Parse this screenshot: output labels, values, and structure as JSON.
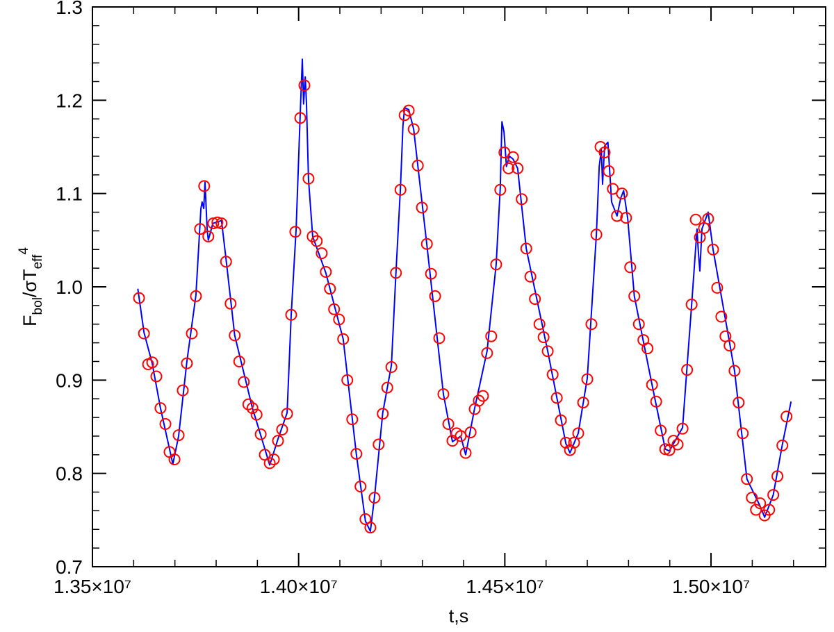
{
  "chart_data": {
    "type": "scatter",
    "xlabel": "t,s",
    "ylabel_parts": [
      "F",
      "bol",
      "/σT",
      "eff",
      "4"
    ],
    "xlim": [
      13500000,
      15278000
    ],
    "ylim": [
      0.7,
      1.3
    ],
    "xticks": [
      {
        "value": 13500000,
        "label": "1.35×10⁷"
      },
      {
        "value": 14000000,
        "label": "1.40×10⁷"
      },
      {
        "value": 14500000,
        "label": "1.45×10⁷"
      },
      {
        "value": 15000000,
        "label": "1.50×10⁷"
      }
    ],
    "yticks": [
      0.7,
      0.8,
      0.9,
      {
        "value": 1,
        "label": "1.0"
      },
      1.1,
      1.2,
      1.3
    ],
    "minor_subdivisions": {
      "x": 5,
      "y": 5
    },
    "line": {
      "color": "#0000ff",
      "x": [
        13610000,
        13625000,
        13645000,
        13665000,
        13695000,
        13709000,
        13729000,
        13751000,
        13763000,
        13766000,
        13770000,
        13773000,
        13778000,
        13781000,
        13792000,
        13813000,
        13824000,
        13845000,
        13888000,
        13908000,
        13930000,
        13950000,
        13972000,
        13982000,
        13994000,
        14004000,
        14009000,
        14012000,
        14016000,
        14019000,
        14024000,
        14034000,
        14066000,
        14108000,
        14140000,
        14162000,
        14174000,
        14184000,
        14204000,
        14225000,
        14236000,
        14247000,
        14253000,
        14257000,
        14267000,
        14279000,
        14311000,
        14351000,
        14373000,
        14393000,
        14405000,
        14427000,
        14457000,
        14479000,
        14489000,
        14493000,
        14498000,
        14504000,
        14511000,
        14520000,
        14531000,
        14552000,
        14604000,
        14648000,
        14658000,
        14678000,
        14700000,
        14722000,
        14729000,
        14734000,
        14737000,
        14742000,
        14750000,
        14759000,
        14772000,
        14781000,
        14788000,
        14798000,
        14814000,
        14857000,
        14889000,
        14899000,
        14931000,
        14953000,
        14966000,
        14969000,
        14973000,
        14978000,
        14993000,
        15005000,
        15057000,
        15087000,
        15119000,
        15130000,
        15151000,
        15173000,
        15194000
      ],
      "values": [
        0.998,
        0.951,
        0.918,
        0.87,
        0.81,
        0.84,
        0.92,
        0.991,
        1.084,
        1.091,
        1.084,
        1.112,
        1.062,
        1.05,
        1.068,
        1.071,
        1.03,
        0.948,
        0.87,
        0.841,
        0.809,
        0.837,
        0.865,
        0.97,
        1.062,
        1.188,
        1.244,
        1.196,
        1.225,
        1.196,
        1.115,
        1.054,
        1.015,
        0.944,
        0.82,
        0.749,
        0.738,
        0.775,
        0.865,
        0.916,
        1.015,
        1.106,
        1.173,
        1.192,
        1.19,
        1.169,
        1.045,
        0.885,
        0.834,
        0.84,
        0.82,
        0.87,
        0.931,
        1.024,
        1.106,
        1.177,
        1.166,
        1.129,
        1.14,
        1.137,
        1.127,
        1.041,
        0.931,
        0.832,
        0.822,
        0.843,
        0.902,
        1.056,
        1.129,
        1.147,
        1.11,
        1.151,
        1.155,
        1.091,
        1.076,
        1.095,
        1.103,
        1.073,
        0.99,
        0.895,
        0.826,
        0.824,
        0.849,
        0.981,
        1.062,
        1.039,
        1.017,
        1.062,
        1.08,
        1.04,
        0.91,
        0.794,
        0.765,
        0.753,
        0.777,
        0.831,
        0.877
      ]
    },
    "points": {
      "color": "#ff0000",
      "x": [
        13613000,
        13625000,
        13635000,
        13645000,
        13655000,
        13665000,
        13677000,
        13687000,
        13699000,
        13709000,
        13719000,
        13729000,
        13741000,
        13751000,
        13761000,
        13771000,
        13781000,
        13793000,
        13803000,
        13813000,
        13824000,
        13835000,
        13845000,
        13856000,
        13867000,
        13878000,
        13888000,
        13898000,
        13908000,
        13918000,
        13930000,
        13940000,
        13950000,
        13960000,
        13972000,
        13982000,
        13992000,
        14004000,
        14014000,
        14024000,
        14034000,
        14044000,
        14056000,
        14066000,
        14076000,
        14086000,
        14098000,
        14108000,
        14118000,
        14130000,
        14140000,
        14150000,
        14162000,
        14174000,
        14184000,
        14194000,
        14204000,
        14215000,
        14225000,
        14236000,
        14247000,
        14257000,
        14267000,
        14279000,
        14289000,
        14299000,
        14311000,
        14321000,
        14331000,
        14341000,
        14351000,
        14363000,
        14373000,
        14383000,
        14393000,
        14405000,
        14417000,
        14427000,
        14437000,
        14447000,
        14457000,
        14467000,
        14479000,
        14489000,
        14499000,
        14509000,
        14520000,
        14531000,
        14541000,
        14552000,
        14562000,
        14573000,
        14584000,
        14594000,
        14604000,
        14616000,
        14626000,
        14636000,
        14648000,
        14658000,
        14668000,
        14678000,
        14690000,
        14700000,
        14710000,
        14722000,
        14732000,
        14742000,
        14752000,
        14762000,
        14772000,
        14784000,
        14794000,
        14804000,
        14814000,
        14825000,
        14836000,
        14846000,
        14857000,
        14867000,
        14878000,
        14889000,
        14899000,
        14909000,
        14919000,
        14931000,
        14942000,
        14953000,
        14963000,
        14973000,
        14983000,
        14993000,
        15005000,
        15015000,
        15025000,
        15035000,
        15045000,
        15057000,
        15067000,
        15077000,
        15087000,
        15099000,
        15109000,
        15119000,
        15130000,
        15141000,
        15151000,
        15161000,
        15173000,
        15183000
      ],
      "values": [
        0.988,
        0.95,
        0.917,
        0.919,
        0.904,
        0.87,
        0.853,
        0.823,
        0.815,
        0.841,
        0.889,
        0.918,
        0.95,
        0.99,
        1.062,
        1.108,
        1.054,
        1.068,
        1.069,
        1.068,
        1.027,
        0.982,
        0.948,
        0.92,
        0.898,
        0.874,
        0.87,
        0.863,
        0.842,
        0.82,
        0.811,
        0.815,
        0.835,
        0.847,
        0.864,
        0.97,
        1.059,
        1.181,
        1.216,
        1.116,
        1.054,
        1.049,
        1.036,
        1.016,
        0.998,
        0.976,
        0.965,
        0.944,
        0.9,
        0.858,
        0.821,
        0.786,
        0.751,
        0.742,
        0.774,
        0.831,
        0.864,
        0.892,
        0.914,
        1.015,
        1.104,
        1.184,
        1.189,
        1.169,
        1.13,
        1.085,
        1.046,
        1.014,
        0.99,
        0.945,
        0.885,
        0.853,
        0.835,
        0.843,
        0.84,
        0.822,
        0.844,
        0.869,
        0.878,
        0.883,
        0.929,
        0.947,
        1.024,
        1.104,
        1.144,
        1.127,
        1.139,
        1.127,
        1.094,
        1.041,
        1.011,
        0.987,
        0.96,
        0.946,
        0.931,
        0.906,
        0.881,
        0.857,
        0.833,
        0.825,
        0.833,
        0.843,
        0.876,
        0.901,
        0.96,
        1.056,
        1.15,
        1.144,
        1.124,
        1.105,
        1.076,
        1.1,
        1.074,
        1.021,
        0.99,
        0.96,
        0.943,
        0.934,
        0.895,
        0.877,
        0.846,
        0.826,
        0.825,
        0.835,
        0.831,
        0.848,
        0.911,
        0.981,
        1.072,
        1.053,
        1.063,
        1.073,
        1.04,
        0.999,
        0.968,
        0.947,
        0.937,
        0.91,
        0.876,
        0.843,
        0.794,
        0.774,
        0.761,
        0.768,
        0.755,
        0.761,
        0.777,
        0.797,
        0.83,
        0.861
      ]
    }
  }
}
